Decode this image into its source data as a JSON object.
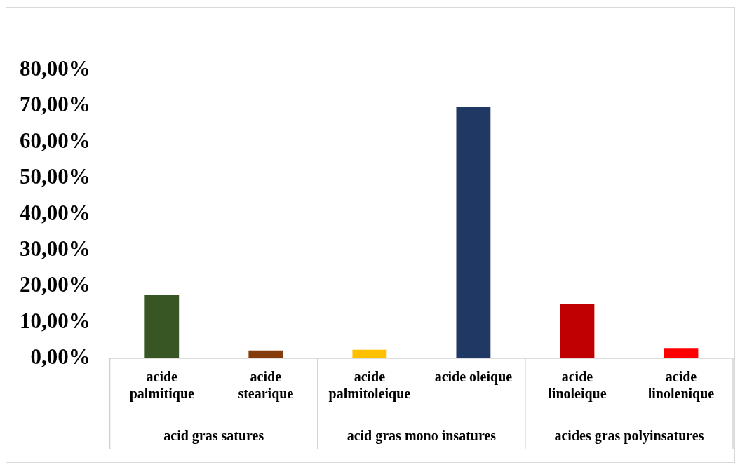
{
  "chart_data": {
    "type": "bar",
    "categories": [
      "acide palmitique",
      "acide stearique",
      "acide palmitoleique",
      "acide oleique",
      "acide linoleique",
      "acide linolenique"
    ],
    "values": [
      17.6,
      2.2,
      2.4,
      69.8,
      15.1,
      2.7
    ],
    "colors": [
      "#375623",
      "#843c0c",
      "#ffc000",
      "#203864",
      "#c00000",
      "#ff0000"
    ],
    "ylim": [
      0,
      80
    ],
    "yticks": [
      {
        "value": 0,
        "label": "0,00%"
      },
      {
        "value": 10,
        "label": "10,00%"
      },
      {
        "value": 20,
        "label": "20,00%"
      },
      {
        "value": 30,
        "label": "30,00%"
      },
      {
        "value": 40,
        "label": "40,00%"
      },
      {
        "value": 50,
        "label": "50,00%"
      },
      {
        "value": 60,
        "label": "60,00%"
      },
      {
        "value": 70,
        "label": "70,00%"
      },
      {
        "value": 80,
        "label": "80,00%"
      }
    ],
    "annotations": [
      "acid gras satures",
      "acid gras mono insatures",
      "acides gras polyinsatures"
    ],
    "grid": false,
    "legend": false
  }
}
